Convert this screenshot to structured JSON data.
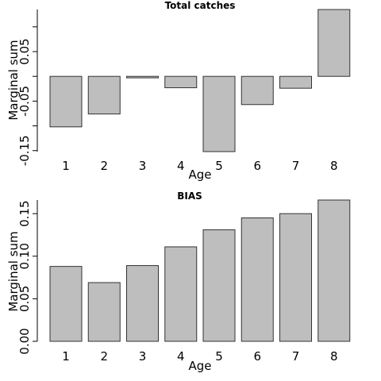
{
  "chart_data": [
    {
      "type": "bar",
      "title": "Total catches",
      "xlabel": "Age",
      "ylabel": "Marginal sum",
      "categories": [
        "1",
        "2",
        "3",
        "4",
        "5",
        "6",
        "7",
        "8"
      ],
      "values": [
        -0.102,
        -0.076,
        -0.003,
        -0.023,
        -0.152,
        -0.057,
        -0.024,
        0.135
      ],
      "ylim": [
        -0.152,
        0.135
      ],
      "yticks": [
        -0.15,
        -0.05,
        0.05
      ],
      "ytick_labels": [
        "-0.15",
        "-0.05",
        "0.05"
      ],
      "grid": false,
      "bar_color": "#bebebe"
    },
    {
      "type": "bar",
      "title": "BIAS",
      "xlabel": "Age",
      "ylabel": "Marginal sum",
      "categories": [
        "1",
        "2",
        "3",
        "4",
        "5",
        "6",
        "7",
        "8"
      ],
      "values": [
        0.088,
        0.069,
        0.089,
        0.111,
        0.131,
        0.145,
        0.15,
        0.166
      ],
      "ylim": [
        0,
        0.166
      ],
      "yticks": [
        0.0,
        0.05,
        0.1,
        0.15
      ],
      "ytick_labels": [
        "0.00",
        "0.05",
        "0.10",
        "0.15"
      ],
      "grid": false,
      "bar_color": "#bebebe"
    }
  ]
}
